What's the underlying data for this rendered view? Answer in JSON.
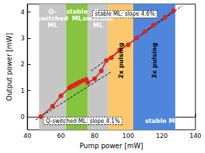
{
  "chart_data": {
    "type": "scatter",
    "x_label": "Pump power [mW]",
    "y_label": "Output power [mW]",
    "xlim": [
      40,
      140
    ],
    "xticks": [
      40,
      60,
      80,
      100,
      120,
      140
    ],
    "ylim": [
      -0.5,
      4.3
    ],
    "yticks": [
      0,
      1,
      2,
      3,
      4
    ],
    "grid": false,
    "series": [
      {
        "type": "line",
        "marker": "circle",
        "line_style": "solid",
        "color": "#e3241c",
        "x": [
          48,
          55,
          60,
          65,
          66,
          67,
          68,
          69,
          70,
          71,
          73,
          75,
          76,
          80,
          84,
          87,
          90,
          95,
          100,
          105,
          110,
          115,
          122,
          127
        ],
        "values": [
          0,
          0.4,
          0.8,
          1.1,
          1.15,
          1.18,
          1.2,
          1.25,
          1.28,
          1.32,
          1.38,
          1.42,
          1.3,
          1.45,
          1.75,
          2.15,
          2.25,
          2.55,
          2.75,
          3.0,
          3.25,
          3.5,
          3.8,
          4.05
        ]
      },
      {
        "type": "line",
        "marker": "none",
        "line_style": "dashed",
        "color": "#000000",
        "x": [
          45,
          90
        ],
        "values": [
          -0.12,
          1.72
        ]
      },
      {
        "type": "line",
        "marker": "none",
        "line_style": "dashed",
        "color": "#000000",
        "x": [
          78,
          132
        ],
        "values": [
          1.75,
          4.23
        ]
      }
    ],
    "regions": [
      {
        "label": "Q-switched ML",
        "x": [
          47,
          63
        ],
        "color": "#c6c6c6"
      },
      {
        "label": "stable ML",
        "x": [
          63,
          76
        ],
        "color": "#86c440"
      },
      {
        "label": "Q-switched ML",
        "x": [
          76,
          88
        ],
        "color": "#c6c6c6"
      },
      {
        "label": "2x pulsing",
        "x": [
          88,
          103
        ],
        "color": "#fcc86e"
      },
      {
        "label": "3x pulsing",
        "x": [
          103,
          128
        ],
        "color": "#4f86dc"
      }
    ],
    "annotations": [
      "stable ML: slope 4.6%",
      "Q-switched ML: slope 4.1%",
      "stable ML"
    ]
  }
}
